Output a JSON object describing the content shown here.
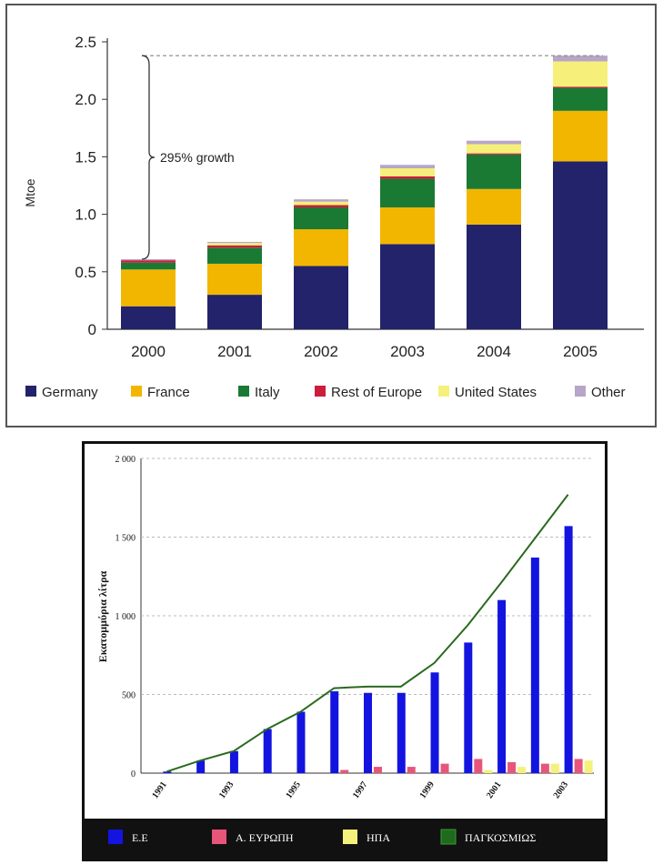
{
  "chart_data": [
    {
      "type": "bar",
      "stacked": true,
      "ylabel": "Mtoe",
      "xlabel": "",
      "ylim": [
        0,
        2.5
      ],
      "yticks": [
        "0",
        "0.5",
        "1.0",
        "1.5",
        "2.0",
        "2.5"
      ],
      "categories": [
        "2000",
        "2001",
        "2002",
        "2003",
        "2004",
        "2005"
      ],
      "series": [
        {
          "name": "Germany",
          "color": "#22236b",
          "values": [
            0.2,
            0.3,
            0.55,
            0.74,
            0.91,
            1.46
          ]
        },
        {
          "name": "France",
          "color": "#f2b600",
          "values": [
            0.32,
            0.27,
            0.32,
            0.32,
            0.31,
            0.44
          ]
        },
        {
          "name": "Italy",
          "color": "#1a7a34",
          "values": [
            0.06,
            0.14,
            0.19,
            0.25,
            0.3,
            0.2
          ]
        },
        {
          "name": "Rest of Europe",
          "color": "#cc1d3c",
          "values": [
            0.02,
            0.02,
            0.02,
            0.02,
            0.01,
            0.01
          ]
        },
        {
          "name": "United States",
          "color": "#f6f07a",
          "values": [
            0.0,
            0.02,
            0.03,
            0.07,
            0.08,
            0.22
          ]
        },
        {
          "name": "Other",
          "color": "#b7a6c8",
          "values": [
            0.01,
            0.01,
            0.02,
            0.03,
            0.03,
            0.05
          ]
        }
      ],
      "annotation": "295% growth",
      "legend_position": "bottom",
      "grid": false
    },
    {
      "type": "bar+line",
      "ylabel": "Εκατομμύρια λίτρα",
      "xlabel": "",
      "ylim": [
        0,
        2000
      ],
      "yticks": [
        "0",
        "500",
        "1 000",
        "1 500",
        "2 000"
      ],
      "x": [
        1991,
        1992,
        1993,
        1994,
        1995,
        1996,
        1997,
        1998,
        1999,
        2000,
        2001,
        2002,
        2003
      ],
      "xtick_labels": [
        "1991",
        "1993",
        "1995",
        "1997",
        "1999",
        "2001",
        "2003"
      ],
      "series": [
        {
          "name": "Ε.Ε",
          "kind": "bar",
          "color": "#1414e0",
          "values": [
            10,
            80,
            140,
            280,
            390,
            520,
            510,
            510,
            640,
            830,
            1100,
            1370,
            1570
          ]
        },
        {
          "name": "Α. ΕΥΡΩΠΗ",
          "kind": "bar",
          "color": "#e8557a",
          "values": [
            0,
            0,
            0,
            0,
            0,
            20,
            40,
            40,
            60,
            90,
            70,
            60,
            90
          ]
        },
        {
          "name": "ΗΠΑ",
          "kind": "bar",
          "color": "#f5f07a",
          "values": [
            0,
            0,
            0,
            0,
            0,
            0,
            0,
            0,
            0,
            20,
            40,
            60,
            80
          ]
        },
        {
          "name": "ΠΑΓΚΟΣΜΙΩΣ",
          "kind": "line",
          "color": "#2a6a1e",
          "values": [
            10,
            80,
            140,
            280,
            390,
            540,
            550,
            550,
            700,
            940,
            1210,
            1490,
            1770
          ]
        }
      ],
      "legend_position": "bottom",
      "grid": true
    }
  ]
}
